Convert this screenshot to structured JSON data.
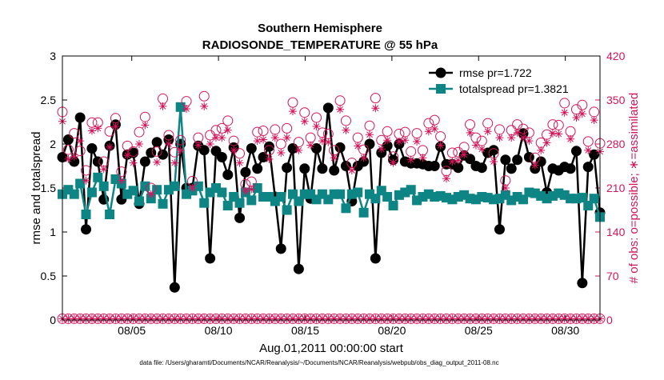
{
  "chart_data": {
    "type": "line",
    "title": "Southern Hemisphere",
    "subtitle": "RADIOSONDE_TEMPERATURE @ 55 hPa",
    "xlabel": "Aug.01,2011 00:00:00 start",
    "ylabel": "rmse and totalspread",
    "ylabel_right": "# of obs: o=possible; ∗=assimilated",
    "footnote": "data file: /Users/gharamti/Documents/NCAR/Reanalysis/~/Documents/NCAR/Reanalysis/webpub/obs_diag_output_2011-08.nc",
    "xlim": [
      1.0,
      32.0
    ],
    "ylim": [
      0,
      3
    ],
    "ylim_right": [
      0,
      420
    ],
    "x_ticks": [
      {
        "value": 5,
        "label": "08/05"
      },
      {
        "value": 10,
        "label": "08/10"
      },
      {
        "value": 15,
        "label": "08/15"
      },
      {
        "value": 20,
        "label": "08/20"
      },
      {
        "value": 25,
        "label": "08/25"
      },
      {
        "value": 30,
        "label": "08/30"
      }
    ],
    "y_ticks": [
      "0",
      "0.5",
      "1",
      "1.5",
      "2",
      "2.5",
      "3"
    ],
    "y_tick_values": [
      0,
      0.5,
      1,
      1.5,
      2,
      2.5,
      3
    ],
    "y_ticks_right": [
      "0",
      "70",
      "140",
      "210",
      "280",
      "350",
      "420"
    ],
    "y_tick_values_right": [
      0,
      70,
      140,
      210,
      280,
      350,
      420
    ],
    "colors": {
      "rmse": "#000000",
      "totalspread": "#0e8585",
      "obs": "#d4145a"
    },
    "series": [
      {
        "name": "rmse",
        "legend": "rmse pr=1.722",
        "axis": "left",
        "marker": "circle",
        "values": [
          1.85,
          2.05,
          1.8,
          2.3,
          1.03,
          1.95,
          1.8,
          1.37,
          1.98,
          2.22,
          1.37,
          1.88,
          1.9,
          1.32,
          1.8,
          1.9,
          2.02,
          1.88,
          2.05,
          0.37,
          2.0,
          1.5,
          1.5,
          1.98,
          1.93,
          0.7,
          1.92,
          1.85,
          1.65,
          1.96,
          1.16,
          1.68,
          1.95,
          1.72,
          1.85,
          1.97,
          1.4,
          0.81,
          1.73,
          1.95,
          0.58,
          1.72,
          1.38,
          1.95,
          1.72,
          2.41,
          1.7,
          1.96,
          1.75,
          1.35,
          1.75,
          1.8,
          2.0,
          0.7,
          1.9,
          1.98,
          1.82,
          2.0,
          1.8,
          1.78,
          1.78,
          1.77,
          1.75,
          1.75,
          1.97,
          1.77,
          1.77,
          1.73,
          1.87,
          1.83,
          1.75,
          1.73,
          1.9,
          1.93,
          1.03,
          1.82,
          1.72,
          1.82,
          2.12,
          1.85,
          1.72,
          1.8,
          1.45,
          1.72,
          1.7,
          1.74,
          1.72,
          1.92,
          0.42,
          1.74,
          1.88,
          1.22
        ]
      },
      {
        "name": "totalspread",
        "legend": "totalspread pr=1.3821",
        "axis": "left",
        "marker": "square",
        "values": [
          1.43,
          1.48,
          1.43,
          1.55,
          1.2,
          1.45,
          1.62,
          1.52,
          1.2,
          1.6,
          1.55,
          1.43,
          1.47,
          1.35,
          1.52,
          1.38,
          1.48,
          1.32,
          1.48,
          1.52,
          2.42,
          1.43,
          1.47,
          1.52,
          1.33,
          1.45,
          1.5,
          1.45,
          1.3,
          1.4,
          1.33,
          1.45,
          1.36,
          1.5,
          1.4,
          1.4,
          1.35,
          1.4,
          1.25,
          1.43,
          1.35,
          1.43,
          1.43,
          1.37,
          1.43,
          1.37,
          1.43,
          1.43,
          1.27,
          1.43,
          1.45,
          1.22,
          1.43,
          1.38,
          1.47,
          1.4,
          1.3,
          1.42,
          1.45,
          1.48,
          1.36,
          1.4,
          1.43,
          1.4,
          1.41,
          1.39,
          1.37,
          1.4,
          1.42,
          1.38,
          1.37,
          1.4,
          1.39,
          1.37,
          1.38,
          1.42,
          1.36,
          1.4,
          1.37,
          1.45,
          1.44,
          1.41,
          1.38,
          1.41,
          1.44,
          1.42,
          1.38,
          1.38,
          1.39,
          1.3,
          1.38,
          1.17
        ]
      },
      {
        "name": "possible",
        "axis": "right",
        "marker": "open-circle",
        "values": [
          331,
          271,
          297,
          269,
          238,
          314,
          314,
          252,
          300,
          321,
          236,
          277,
          268,
          299,
          323,
          210,
          268,
          352,
          294,
          267,
          286,
          348,
          221,
          290,
          356,
          294,
          302,
          305,
          317,
          285,
          265,
          216,
          220,
          299,
          301,
          270,
          303,
          280,
          305,
          346,
          283,
          330,
          290,
          322,
          298,
          296,
          270,
          349,
          317,
          250,
          290,
          271,
          309,
          353,
          286,
          300,
          260,
          296,
          299,
          268,
          297,
          270,
          313,
          318,
          292,
          237,
          266,
          267,
          275,
          311,
          290,
          285,
          313,
          265,
          303,
          222,
          302,
          311,
          304,
          298,
          258,
          282,
          295,
          311,
          310,
          345,
          300,
          335,
          342,
          284,
          331,
          281
        ]
      },
      {
        "name": "assimilated",
        "axis": "right",
        "marker": "asterisk",
        "values": [
          316,
          256,
          260,
          285,
          222,
          301,
          305,
          240,
          275,
          308,
          222,
          262,
          250,
          280,
          310,
          200,
          251,
          340,
          280,
          250,
          270,
          336,
          210,
          278,
          340,
          280,
          290,
          290,
          302,
          270,
          250,
          205,
          208,
          285,
          287,
          256,
          290,
          266,
          290,
          332,
          270,
          316,
          278,
          308,
          285,
          283,
          258,
          335,
          302,
          238,
          277,
          258,
          295,
          337,
          272,
          286,
          250,
          284,
          286,
          255,
          284,
          258,
          300,
          304,
          278,
          225,
          252,
          254,
          263,
          298,
          278,
          272,
          300,
          252,
          290,
          210,
          290,
          298,
          290,
          285,
          246,
          270,
          282,
          297,
          296,
          330,
          288,
          322,
          328,
          270,
          318,
          268
        ]
      },
      {
        "name": "possible-baseline",
        "axis": "right",
        "marker": "open-circle",
        "values": [
          2,
          2,
          2,
          2,
          2,
          2,
          2,
          2,
          2,
          2,
          2,
          2,
          2,
          2,
          2,
          2,
          2,
          2,
          2,
          2,
          2,
          2,
          2,
          2,
          2,
          2,
          2,
          2,
          2,
          2,
          2,
          2,
          2,
          2,
          2,
          2,
          2,
          2,
          2,
          2,
          2,
          2,
          2,
          2,
          2,
          2,
          2,
          2,
          2,
          2,
          2,
          2,
          2,
          2,
          2,
          2,
          2,
          2,
          2,
          2,
          2,
          2,
          2,
          2,
          2,
          2,
          2,
          2,
          2,
          2,
          2,
          2,
          2,
          2,
          2,
          2,
          2,
          2,
          2,
          2,
          2,
          2,
          2,
          2,
          2,
          2,
          2,
          2,
          2,
          2,
          2,
          2
        ]
      },
      {
        "name": "assimilated-baseline",
        "axis": "right",
        "marker": "asterisk",
        "values": [
          2,
          2,
          2,
          2,
          2,
          2,
          2,
          2,
          2,
          2,
          2,
          2,
          2,
          2,
          2,
          2,
          2,
          2,
          2,
          2,
          2,
          2,
          2,
          2,
          2,
          2,
          2,
          2,
          2,
          2,
          2,
          2,
          2,
          2,
          2,
          2,
          2,
          2,
          2,
          2,
          2,
          2,
          2,
          2,
          2,
          2,
          2,
          2,
          2,
          2,
          2,
          2,
          2,
          2,
          2,
          2,
          2,
          2,
          2,
          2,
          2,
          2,
          2,
          2,
          2,
          2,
          2,
          2,
          2,
          2,
          2,
          2,
          2,
          2,
          2,
          2,
          2,
          2,
          2,
          2,
          2,
          2,
          2,
          2,
          2,
          2,
          2,
          2,
          2,
          2,
          2,
          2
        ]
      }
    ],
    "legend_position": "top-right",
    "grid": false
  }
}
